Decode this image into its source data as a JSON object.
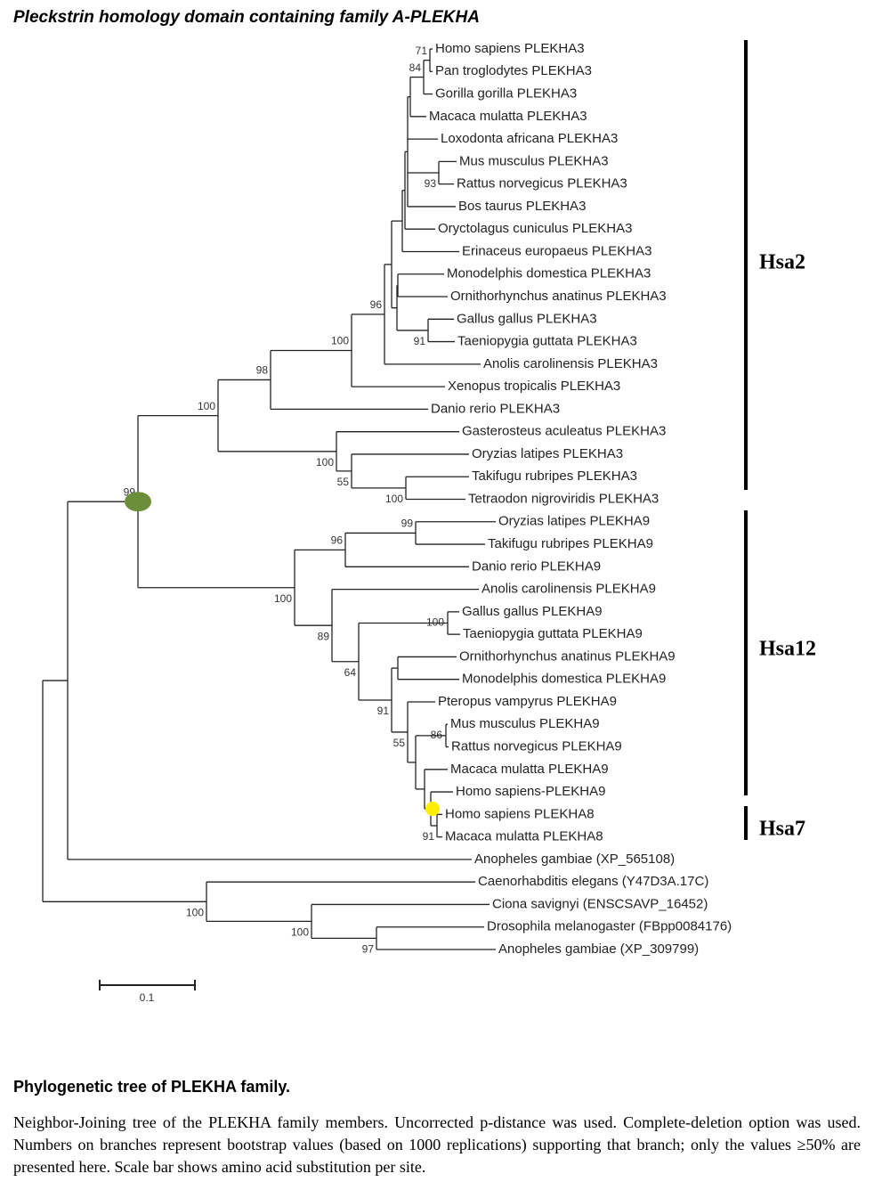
{
  "title": "Pleckstrin homology domain containing family A-PLEKHA",
  "leaves": [
    "Homo sapiens PLEKHA3",
    "Pan troglodytes PLEKHA3",
    "Gorilla gorilla PLEKHA3",
    "Macaca mulatta PLEKHA3",
    "Loxodonta africana PLEKHA3",
    "Mus musculus PLEKHA3",
    "Rattus norvegicus PLEKHA3",
    "Bos taurus PLEKHA3",
    "Oryctolagus cuniculus PLEKHA3",
    "Erinaceus europaeus PLEKHA3",
    "Monodelphis domestica PLEKHA3",
    "Ornithorhynchus anatinus PLEKHA3",
    "Gallus gallus PLEKHA3",
    "Taeniopygia guttata PLEKHA3",
    "Anolis carolinensis PLEKHA3",
    "Xenopus tropicalis PLEKHA3",
    "Danio rerio PLEKHA3",
    "Gasterosteus aculeatus PLEKHA3",
    "Oryzias latipes PLEKHA3",
    "Takifugu rubripes PLEKHA3",
    "Tetraodon nigroviridis PLEKHA3",
    "Oryzias latipes PLEKHA9",
    "Takifugu rubripes PLEKHA9",
    "Danio rerio PLEKHA9",
    "Anolis carolinensis PLEKHA9",
    "Gallus gallus PLEKHA9",
    "Taeniopygia guttata PLEKHA9",
    "Ornithorhynchus anatinus PLEKHA9",
    "Monodelphis domestica PLEKHA9",
    "Pteropus vampyrus PLEKHA9",
    "Mus musculus PLEKHA9",
    "Rattus norvegicus PLEKHA9",
    "Macaca mulatta PLEKHA9",
    "Homo sapiens-PLEKHA9",
    "Homo sapiens PLEKHA8",
    "Macaca mulatta PLEKHA8",
    "Anopheles gambiae (XP_565108)",
    "Caenorhabditis elegans (Y47D3A.17C)",
    "Ciona savignyi (ENSCSAVP_16452)",
    "Drosophila melanogaster (FBpp0084176)",
    "Anopheles gambiae (XP_309799)"
  ],
  "bootstrap_values": [
    71,
    84,
    93,
    91,
    96,
    100,
    98,
    100,
    55,
    100,
    100,
    99,
    99,
    96,
    100,
    86,
    91,
    55,
    91,
    64,
    89,
    100,
    97,
    100,
    100
  ],
  "clades": [
    "Hsa2",
    "Hsa12",
    "Hsa7"
  ],
  "scale_label": "0.1",
  "caption": {
    "heading": "Phylogenetic tree of PLEKHA family.",
    "text": "Neighbor-Joining tree of the PLEKHA family members. Uncorrected p-distance was used. Complete-deletion option was used. Numbers on branches represent bootstrap values (based on 1000 replications) supporting that branch; only the values ≥50% are presented here. Scale bar shows amino acid substitution per site."
  }
}
